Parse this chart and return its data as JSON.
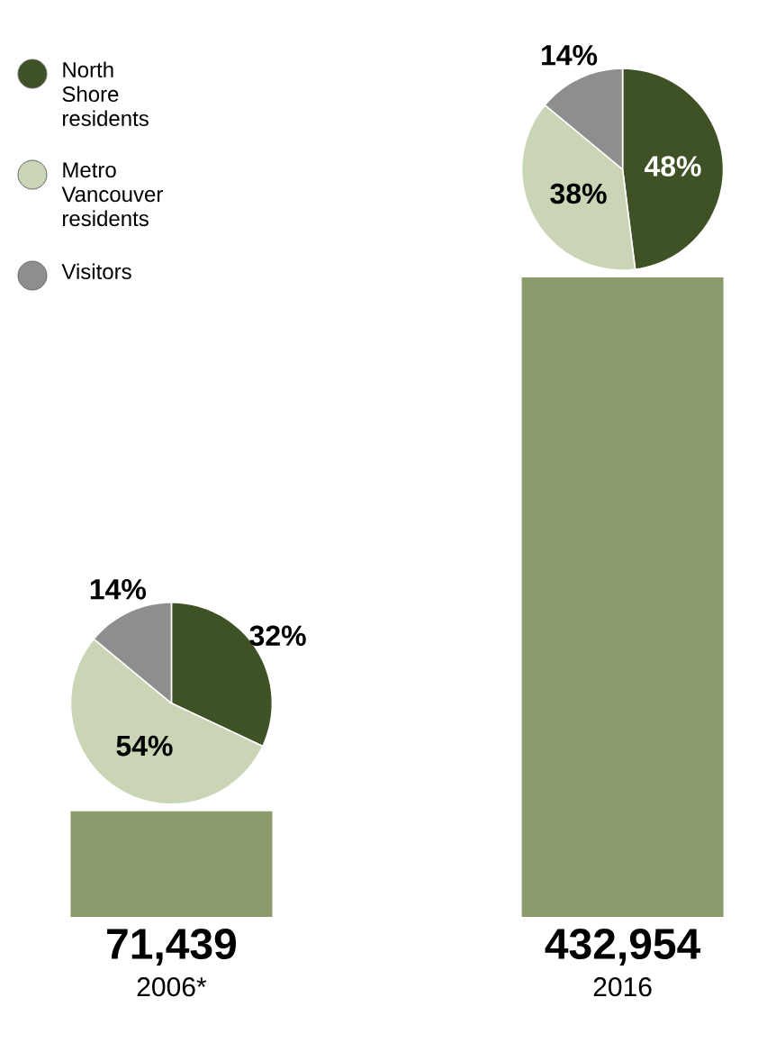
{
  "chart_data": [
    {
      "type": "bar",
      "categories": [
        "2006*",
        "2016"
      ],
      "values": [
        71439,
        432954
      ],
      "color": "#8a9a6a",
      "value_labels": [
        "71,439",
        "432,954"
      ]
    },
    {
      "type": "pie",
      "categories": [
        "North Shore residents",
        "Metro Vancouver residents",
        "Visitors"
      ],
      "values": [
        32,
        54,
        14
      ],
      "colors": [
        "#3f5226",
        "#c9d5b5",
        "#8e8e8e"
      ],
      "value_labels": [
        "32%",
        "54%",
        "14%"
      ],
      "legend": "left"
    },
    {
      "type": "pie",
      "values": [
        48,
        38,
        14
      ],
      "colors": [
        "#3f5226",
        "#c9d5b5",
        "#8e8e8e"
      ],
      "value_labels": [
        "48%",
        "38%",
        "14%"
      ]
    }
  ]
}
